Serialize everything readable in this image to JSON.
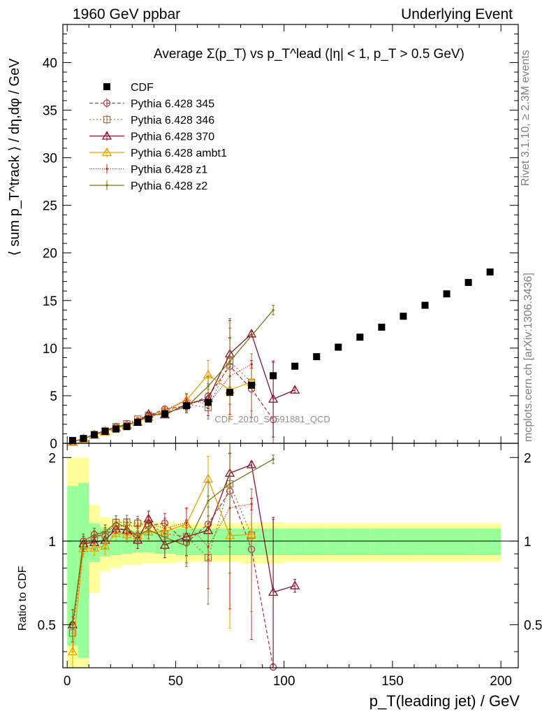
{
  "header": {
    "left": "1960 GeV ppbar",
    "right": "Underlying Event"
  },
  "side_labels": {
    "rivet": "Rivet 3.1.10, ≥ 2.3M events",
    "mcplots": "mcplots.cern.ch [arXiv:1306.3436]"
  },
  "chart_data": {
    "type": "scatter",
    "title": "Average Σ(p_T) vs p_T^lead (|η| < 1, p_T > 0.5 GeV)",
    "analysis_label": "CDF_2010_S8591881_QCD",
    "xlabel": "p_T(leading jet) / GeV",
    "ylabel": "⟨ sum p_T^track ⟩ / dη,dφ / GeV",
    "ratio_ylabel": "Ratio to CDF",
    "xlim": [
      -2,
      208
    ],
    "ylim": [
      0,
      44
    ],
    "ratio_ylim": [
      0.35,
      2.25
    ],
    "x_ticks": [
      0,
      50,
      100,
      150,
      200
    ],
    "y_ticks": [
      0,
      5,
      10,
      15,
      20,
      25,
      30,
      35,
      40
    ],
    "ratio_ticks": [
      0.5,
      1,
      2
    ],
    "legend_position": "top-left",
    "x": [
      2.5,
      7.5,
      12.5,
      17.5,
      22.5,
      27.5,
      32.5,
      37.5,
      45,
      55,
      65,
      75,
      85,
      95,
      105,
      115,
      125,
      135,
      145,
      155,
      165,
      175,
      185,
      195
    ],
    "series": [
      {
        "name": "CDF",
        "color": "#000000",
        "marker": "square",
        "values": [
          0.3,
          0.5,
          0.9,
          1.25,
          1.5,
          1.75,
          2.2,
          2.55,
          3.1,
          3.95,
          4.3,
          5.35,
          6.1,
          7.1,
          8.1,
          9.1,
          10.1,
          11.15,
          12.2,
          13.35,
          14.5,
          15.7,
          16.9,
          18.0
        ],
        "band_inner_rel": [
          0.58,
          0.62,
          0.16,
          0.12,
          0.11,
          0.1,
          0.09,
          0.09,
          0.1,
          0.11,
          0.11,
          0.11,
          0.11,
          0.11,
          0.11,
          0.11,
          0.11,
          0.11,
          0.11,
          0.11,
          0.11,
          0.11,
          0.11,
          0.11
        ],
        "band_outer_rel": [
          1.0,
          1.0,
          0.35,
          0.22,
          0.2,
          0.18,
          0.18,
          0.17,
          0.17,
          0.16,
          0.16,
          0.16,
          0.17,
          0.17,
          0.16,
          0.16,
          0.16,
          0.16,
          0.16,
          0.16,
          0.16,
          0.16,
          0.16,
          0.16
        ]
      },
      {
        "name": "Pythia 6.428 345",
        "color": "#b03a48",
        "marker": "circle",
        "dash": "5,3",
        "x": [
          2.5,
          7.5,
          12.5,
          17.5,
          22.5,
          27.5,
          32.5,
          37.5,
          45,
          55,
          65,
          75,
          85,
          95
        ],
        "values": [
          0.15,
          0.5,
          0.95,
          1.3,
          1.7,
          1.9,
          2.3,
          2.9,
          3.6,
          3.9,
          4.95,
          8.1,
          5.7,
          2.5
        ],
        "errors": [
          0.02,
          0.03,
          0.05,
          0.08,
          0.1,
          0.12,
          0.15,
          0.2,
          0.3,
          0.6,
          1.3,
          3.0,
          3.0,
          6.0
        ]
      },
      {
        "name": "Pythia 6.428 346",
        "color": "#a07848",
        "marker": "square-open",
        "dash": "2,3",
        "x": [
          2.5,
          7.5,
          12.5,
          17.5,
          22.5,
          27.5,
          32.5,
          37.5,
          45,
          55,
          65,
          75,
          85
        ],
        "values": [
          0.14,
          0.48,
          0.92,
          1.32,
          1.75,
          2.05,
          2.55,
          2.95,
          3.3,
          4.1,
          3.75,
          8.6,
          6.4
        ],
        "errors": [
          0.02,
          0.03,
          0.05,
          0.08,
          0.1,
          0.12,
          0.15,
          0.2,
          0.3,
          0.6,
          1.2,
          3.5,
          3.0
        ]
      },
      {
        "name": "Pythia 6.428 370",
        "color": "#8c1430",
        "marker": "triangle-open",
        "x": [
          2.5,
          7.5,
          12.5,
          17.5,
          22.5,
          27.5,
          32.5,
          37.5,
          45,
          55,
          65,
          75,
          85,
          95,
          105
        ],
        "values": [
          0.15,
          0.49,
          0.89,
          1.26,
          1.66,
          1.92,
          2.22,
          3.07,
          3.0,
          4.1,
          4.7,
          9.4,
          11.5,
          4.65,
          5.6
        ],
        "errors": [
          0.02,
          0.03,
          0.05,
          0.08,
          0.1,
          0.12,
          0.15,
          0.2,
          0.3,
          0.6,
          1.0,
          3.5,
          0.3,
          4.0,
          0.3
        ]
      },
      {
        "name": "Pythia 6.428 ambt1",
        "color": "#f0a000",
        "marker": "triangle-open",
        "x": [
          2.5,
          7.5,
          12.5,
          17.5,
          22.5,
          27.5,
          32.5,
          37.5,
          45,
          55,
          65,
          75,
          85
        ],
        "values": [
          0.12,
          0.47,
          0.85,
          1.2,
          1.6,
          1.85,
          2.3,
          2.75,
          3.35,
          4.55,
          7.2,
          5.6,
          6.45
        ],
        "errors": [
          0.02,
          0.03,
          0.05,
          0.08,
          0.1,
          0.12,
          0.15,
          0.2,
          0.3,
          0.6,
          1.5,
          3.0,
          0.3
        ]
      },
      {
        "name": "Pythia 6.428 z1",
        "color": "#d02010",
        "marker": "dot",
        "dash": "1,2",
        "x": [
          2.5,
          7.5,
          12.5,
          17.5,
          22.5,
          27.5,
          32.5,
          37.5,
          45,
          55,
          65,
          75,
          85
        ],
        "values": [
          0.15,
          0.49,
          0.93,
          1.35,
          1.7,
          1.98,
          2.5,
          2.95,
          3.45,
          4.6,
          4.1,
          7.05,
          8.3
        ],
        "errors": [
          0.02,
          0.03,
          0.05,
          0.08,
          0.1,
          0.12,
          0.15,
          0.2,
          0.3,
          0.6,
          1.2,
          4.0,
          0.4
        ]
      },
      {
        "name": "Pythia 6.428 z2",
        "color": "#7a7a10",
        "marker": "dot",
        "x": [
          2.5,
          7.5,
          12.5,
          17.5,
          22.5,
          27.5,
          32.5,
          37.5,
          45,
          55,
          65,
          75,
          95
        ],
        "values": [
          0.15,
          0.5,
          0.95,
          1.35,
          1.75,
          1.95,
          2.3,
          2.8,
          3.2,
          3.8,
          6.0,
          8.6,
          14.0
        ],
        "errors": [
          0.02,
          0.03,
          0.05,
          0.08,
          0.1,
          0.12,
          0.15,
          0.2,
          0.3,
          0.6,
          1.0,
          4.5,
          0.5
        ]
      }
    ]
  }
}
